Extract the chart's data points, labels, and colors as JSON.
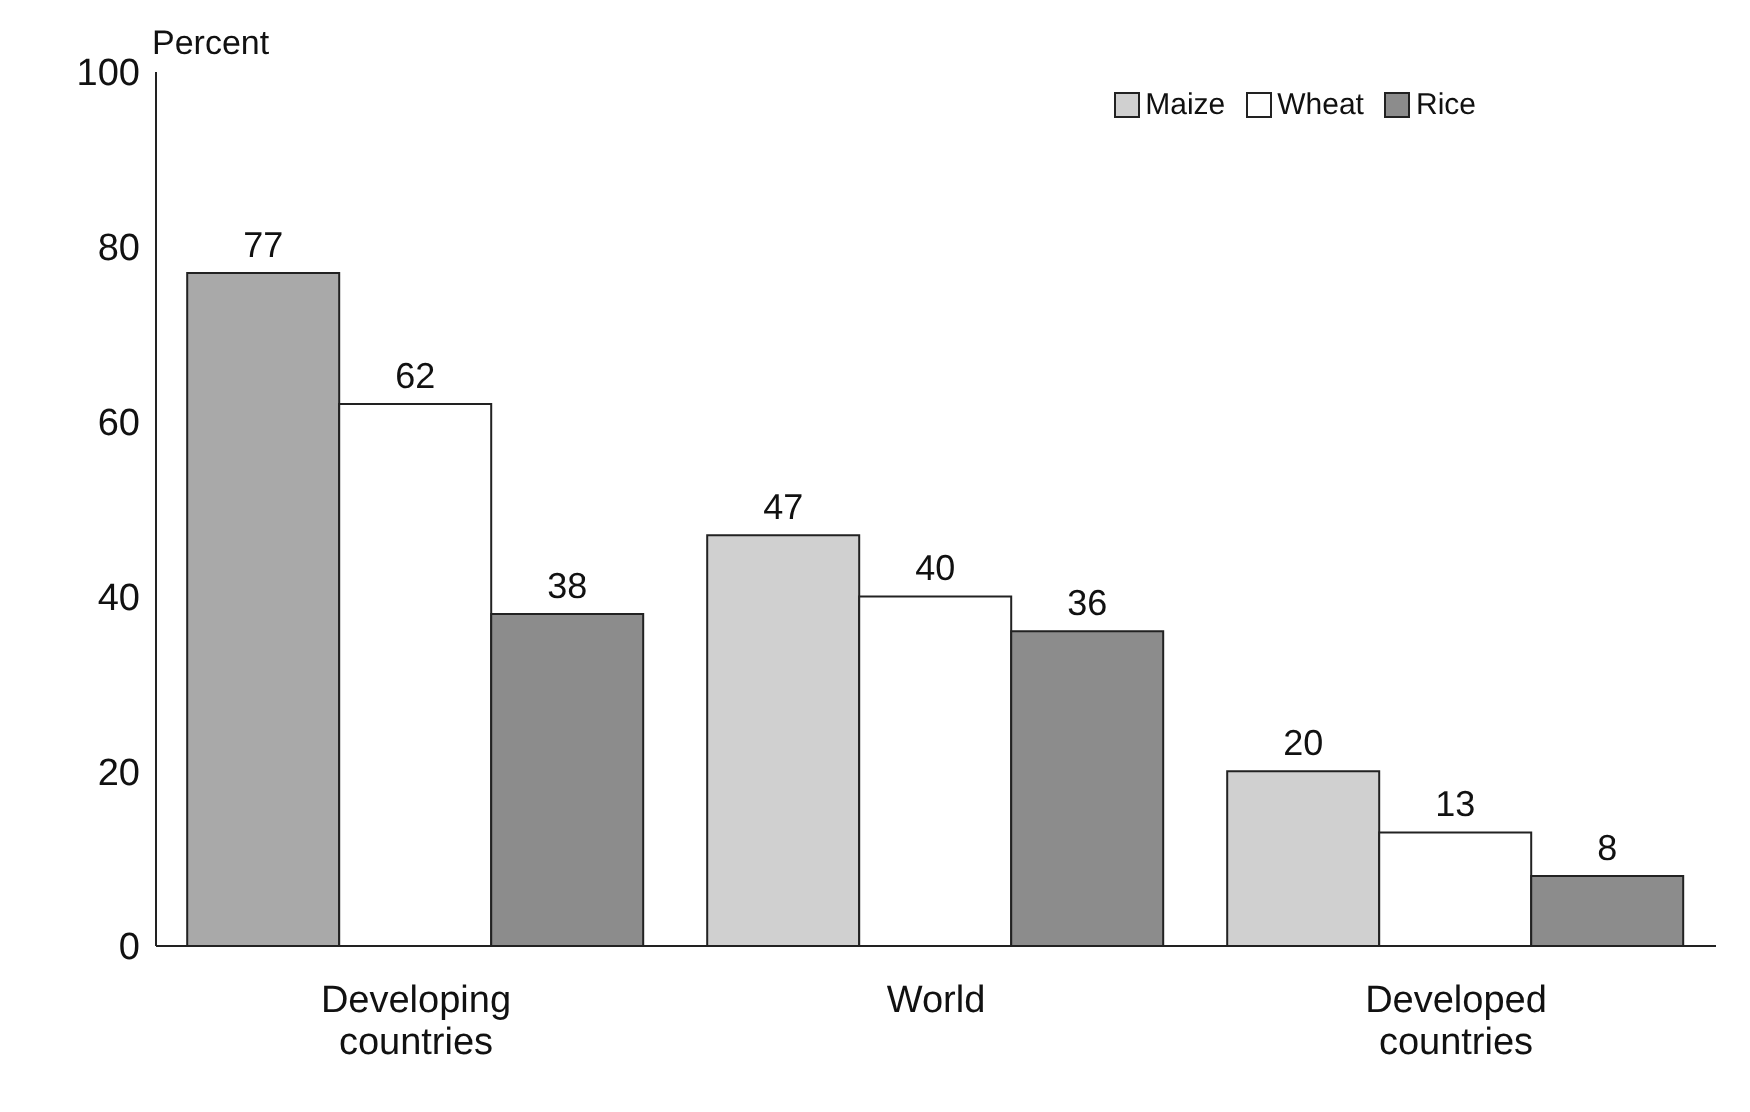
{
  "chart_data": {
    "type": "bar",
    "ylabel": "Percent",
    "categories": [
      "Developing countries",
      "World",
      "Developed countries"
    ],
    "series": [
      {
        "name": "Maize",
        "color": "#d0d0d0",
        "colors": [
          "#a9a9a9",
          "#d0d0d0",
          "#d0d0d0"
        ],
        "values": [
          77,
          47,
          20
        ]
      },
      {
        "name": "Wheat",
        "color": "#ffffff",
        "values": [
          62,
          40,
          13
        ]
      },
      {
        "name": "Rice",
        "color": "#8c8c8c",
        "values": [
          38,
          36,
          8
        ]
      }
    ],
    "ylim": [
      0,
      100
    ],
    "yticks": [
      0,
      20,
      40,
      60,
      80,
      100
    ],
    "grid": false,
    "legend": "top right",
    "data_labels": true
  }
}
